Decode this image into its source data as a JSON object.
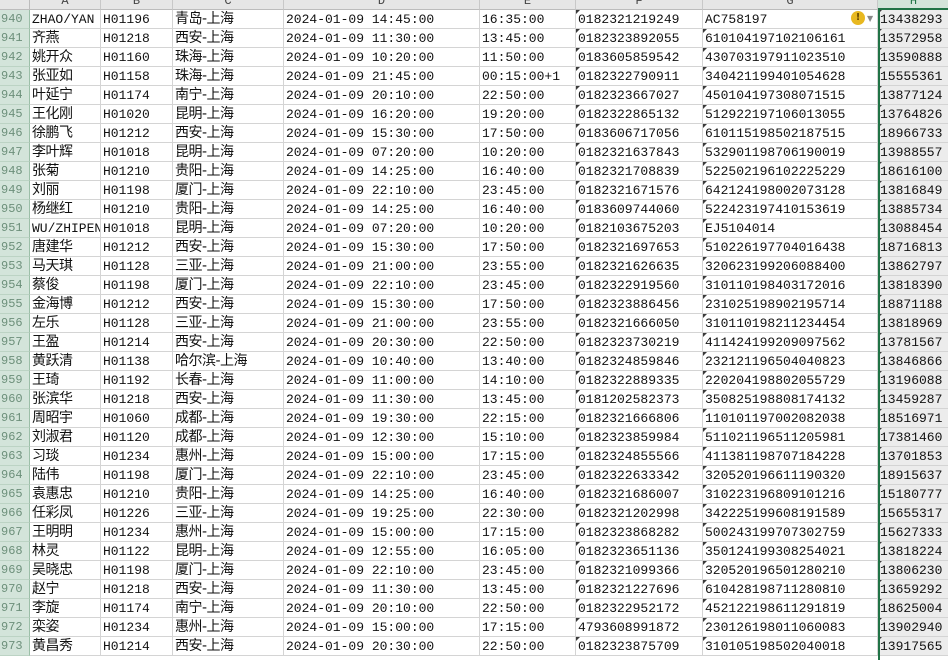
{
  "columns": [
    "A",
    "B",
    "C",
    "D",
    "E",
    "F",
    "G",
    "H"
  ],
  "selected_column": "H",
  "warning_icon": "error-indicator-icon",
  "warning_glyph": "!",
  "dropdown_icon": "chevron-down-icon",
  "dropdown_glyph": "▼",
  "accent_color": "#217346",
  "rows": [
    {
      "n": "940",
      "a": "ZHAO/YAN",
      "b": "H01196",
      "c": "青岛-上海",
      "d": "2024-01-09 14:45:00",
      "e": "16:35:00",
      "f": "0182321219249",
      "g": "AC758197",
      "h": "13438293"
    },
    {
      "n": "941",
      "a": "齐燕",
      "b": "H01218",
      "c": "西安-上海",
      "d": "2024-01-09 11:30:00",
      "e": "13:45:00",
      "f": "0182323892055",
      "g": "610104197102106161",
      "h": "13572958"
    },
    {
      "n": "942",
      "a": "姚开众",
      "b": "H01160",
      "c": "珠海-上海",
      "d": "2024-01-09 10:20:00",
      "e": "11:50:00",
      "f": "0183605859542",
      "g": "430703197911023510",
      "h": "13590888"
    },
    {
      "n": "943",
      "a": "张亚如",
      "b": "H01158",
      "c": "珠海-上海",
      "d": "2024-01-09 21:45:00",
      "e": "00:15:00+1",
      "f": "0182322790911",
      "g": "340421199401054628",
      "h": "15555361"
    },
    {
      "n": "944",
      "a": "叶延宁",
      "b": "H01174",
      "c": "南宁-上海",
      "d": "2024-01-09 20:10:00",
      "e": "22:50:00",
      "f": "0182323667027",
      "g": "450104197308071515",
      "h": "13877124"
    },
    {
      "n": "945",
      "a": "王化刚",
      "b": "H01020",
      "c": "昆明-上海",
      "d": "2024-01-09 16:20:00",
      "e": "19:20:00",
      "f": "0182322865132",
      "g": "512922197106013055",
      "h": "13764826"
    },
    {
      "n": "946",
      "a": "徐鹏飞",
      "b": "H01212",
      "c": "西安-上海",
      "d": "2024-01-09 15:30:00",
      "e": "17:50:00",
      "f": "0183606717056",
      "g": "610115198502187515",
      "h": "18966733"
    },
    {
      "n": "947",
      "a": "李叶辉",
      "b": "H01018",
      "c": "昆明-上海",
      "d": "2024-01-09 07:20:00",
      "e": "10:20:00",
      "f": "0182321637843",
      "g": "532901198706190019",
      "h": "13988557"
    },
    {
      "n": "948",
      "a": "张菊",
      "b": "H01210",
      "c": "贵阳-上海",
      "d": "2024-01-09 14:25:00",
      "e": "16:40:00",
      "f": "0182321708839",
      "g": "522502196102225229",
      "h": "18616100"
    },
    {
      "n": "949",
      "a": "刘丽",
      "b": "H01198",
      "c": "厦门-上海",
      "d": "2024-01-09 22:10:00",
      "e": "23:45:00",
      "f": "0182321671576",
      "g": "642124198002073128",
      "h": "13816849"
    },
    {
      "n": "950",
      "a": "杨继红",
      "b": "H01210",
      "c": "贵阳-上海",
      "d": "2024-01-09 14:25:00",
      "e": "16:40:00",
      "f": "0183609744060",
      "g": "522423197410153619",
      "h": "13885734"
    },
    {
      "n": "951",
      "a": "WU/ZHIPEN",
      "b": "H01018",
      "c": "昆明-上海",
      "d": "2024-01-09 07:20:00",
      "e": "10:20:00",
      "f": "0182103675203",
      "g": "EJ5104014",
      "h": "13088454"
    },
    {
      "n": "952",
      "a": "唐建华",
      "b": "H01212",
      "c": "西安-上海",
      "d": "2024-01-09 15:30:00",
      "e": "17:50:00",
      "f": "0182321697653",
      "g": "510226197704016438",
      "h": "18716813"
    },
    {
      "n": "953",
      "a": "马天琪",
      "b": "H01128",
      "c": "三亚-上海",
      "d": "2024-01-09 21:00:00",
      "e": "23:55:00",
      "f": "0182321626635",
      "g": "320623199206088400",
      "h": "13862797"
    },
    {
      "n": "954",
      "a": "蔡俊",
      "b": "H01198",
      "c": "厦门-上海",
      "d": "2024-01-09 22:10:00",
      "e": "23:45:00",
      "f": "0182322919560",
      "g": "310110198403172016",
      "h": "13818390"
    },
    {
      "n": "955",
      "a": "金海博",
      "b": "H01212",
      "c": "西安-上海",
      "d": "2024-01-09 15:30:00",
      "e": "17:50:00",
      "f": "0182323886456",
      "g": "231025198902195714",
      "h": "18871188"
    },
    {
      "n": "956",
      "a": "左乐",
      "b": "H01128",
      "c": "三亚-上海",
      "d": "2024-01-09 21:00:00",
      "e": "23:55:00",
      "f": "0182321666050",
      "g": "310110198211234454",
      "h": "13818969"
    },
    {
      "n": "957",
      "a": "王盈",
      "b": "H01214",
      "c": "西安-上海",
      "d": "2024-01-09 20:30:00",
      "e": "22:50:00",
      "f": "0182323730219",
      "g": "411424199209097562",
      "h": "13781567"
    },
    {
      "n": "958",
      "a": "黄跃清",
      "b": "H01138",
      "c": "哈尔滨-上海",
      "d": "2024-01-09 10:40:00",
      "e": "13:40:00",
      "f": "0182324859846",
      "g": "232121196504040823",
      "h": "13846866"
    },
    {
      "n": "959",
      "a": "王琦",
      "b": "H01192",
      "c": "长春-上海",
      "d": "2024-01-09 11:00:00",
      "e": "14:10:00",
      "f": "0182322889335",
      "g": "220204198802055729",
      "h": "13196088"
    },
    {
      "n": "960",
      "a": "张滨华",
      "b": "H01218",
      "c": "西安-上海",
      "d": "2024-01-09 11:30:00",
      "e": "13:45:00",
      "f": "0181202582373",
      "g": "350825198808174132",
      "h": "13459287"
    },
    {
      "n": "961",
      "a": "周昭宇",
      "b": "H01060",
      "c": "成都-上海",
      "d": "2024-01-09 19:30:00",
      "e": "22:15:00",
      "f": "0182321666806",
      "g": "110101197002082038",
      "h": "18516971"
    },
    {
      "n": "962",
      "a": "刘淑君",
      "b": "H01120",
      "c": "成都-上海",
      "d": "2024-01-09 12:30:00",
      "e": "15:10:00",
      "f": "0182323859984",
      "g": "511021196511205981",
      "h": "17381460"
    },
    {
      "n": "963",
      "a": "习琰",
      "b": "H01234",
      "c": "惠州-上海",
      "d": "2024-01-09 15:00:00",
      "e": "17:15:00",
      "f": "0182324855566",
      "g": "411381198707184228",
      "h": "13701853"
    },
    {
      "n": "964",
      "a": "陆伟",
      "b": "H01198",
      "c": "厦门-上海",
      "d": "2024-01-09 22:10:00",
      "e": "23:45:00",
      "f": "0182322633342",
      "g": "320520196611190320",
      "h": "18915637"
    },
    {
      "n": "965",
      "a": "袁惠忠",
      "b": "H01210",
      "c": "贵阳-上海",
      "d": "2024-01-09 14:25:00",
      "e": "16:40:00",
      "f": "0182321686007",
      "g": "310223196809101216",
      "h": "15180777"
    },
    {
      "n": "966",
      "a": "任彩凤",
      "b": "H01226",
      "c": "三亚-上海",
      "d": "2024-01-09 19:25:00",
      "e": "22:30:00",
      "f": "0182321202998",
      "g": "342225199608191589",
      "h": "15655317"
    },
    {
      "n": "967",
      "a": "王明明",
      "b": "H01234",
      "c": "惠州-上海",
      "d": "2024-01-09 15:00:00",
      "e": "17:15:00",
      "f": "0182323868282",
      "g": "500243199707302759",
      "h": "15627333"
    },
    {
      "n": "968",
      "a": "林灵",
      "b": "H01122",
      "c": "昆明-上海",
      "d": "2024-01-09 12:55:00",
      "e": "16:05:00",
      "f": "0182323651136",
      "g": "350124199308254021",
      "h": "13818224"
    },
    {
      "n": "969",
      "a": "吴晓忠",
      "b": "H01198",
      "c": "厦门-上海",
      "d": "2024-01-09 22:10:00",
      "e": "23:45:00",
      "f": "0182321099366",
      "g": "320520196501280210",
      "h": "13806230"
    },
    {
      "n": "970",
      "a": "赵宁",
      "b": "H01218",
      "c": "西安-上海",
      "d": "2024-01-09 11:30:00",
      "e": "13:45:00",
      "f": "0182321227696",
      "g": "610428198711280810",
      "h": "13659292"
    },
    {
      "n": "971",
      "a": "李旋",
      "b": "H01174",
      "c": "南宁-上海",
      "d": "2024-01-09 20:10:00",
      "e": "22:50:00",
      "f": "0182322952172",
      "g": "452122198611291819",
      "h": "18625004"
    },
    {
      "n": "972",
      "a": "栾姿",
      "b": "H01234",
      "c": "惠州-上海",
      "d": "2024-01-09 15:00:00",
      "e": "17:15:00",
      "f": "4793608991872",
      "g": "230126198011060083",
      "h": "13902940"
    },
    {
      "n": "973",
      "a": "黄昌秀",
      "b": "H01214",
      "c": "西安-上海",
      "d": "2024-01-09 20:30:00",
      "e": "22:50:00",
      "f": "0182323875709",
      "g": "310105198502040018",
      "h": "13917565"
    }
  ]
}
